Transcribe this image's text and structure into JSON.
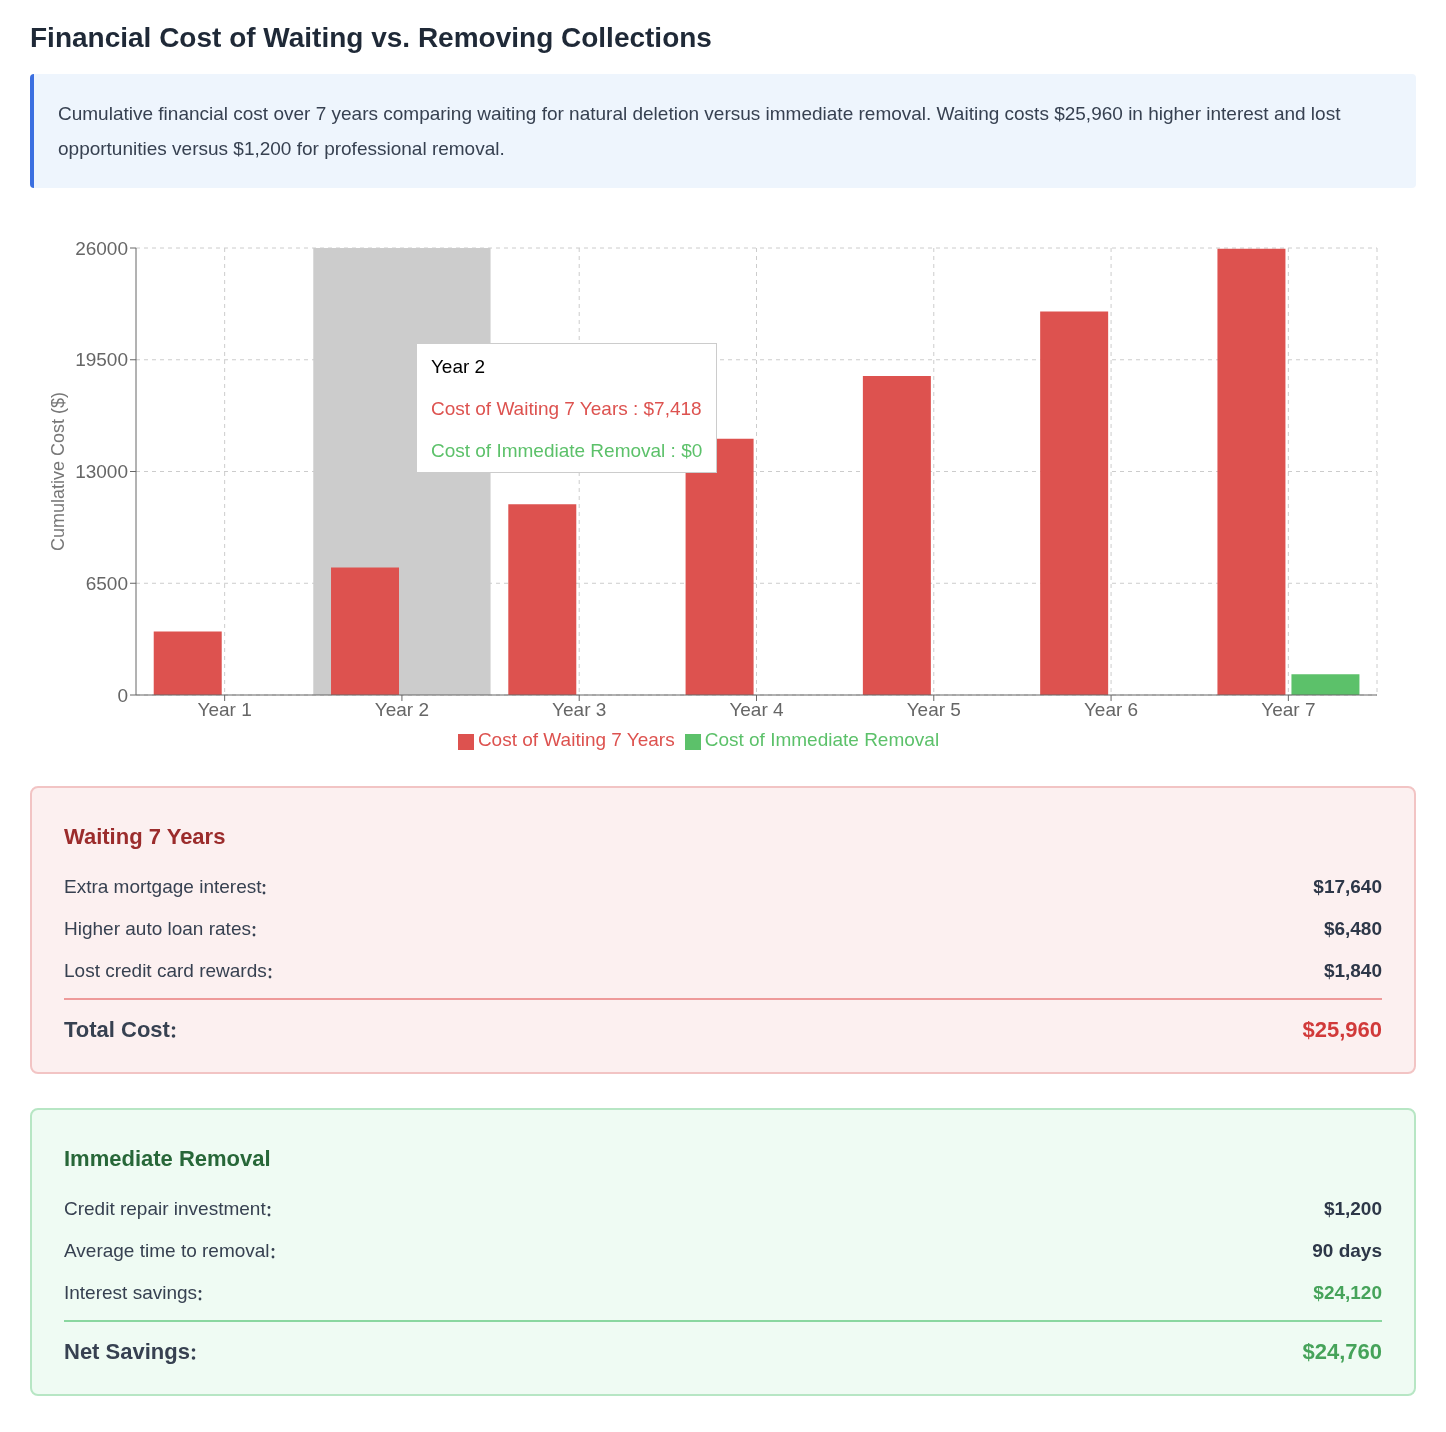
{
  "chart_data": [
    {
      "type": "bar",
      "title": "Financial Cost of Waiting vs. Removing Collections",
      "subtitle": "Cumulative financial cost over 7 years comparing waiting for natural deletion versus immediate removal. Waiting costs $25,960 in higher interest and lost opportunities versus $1,200 for professional removal.",
      "ylabel": "Cumulative Cost ($)",
      "categories": [
        "Year 1",
        "Year 2",
        "Year 3",
        "Year 4",
        "Year 5",
        "Year 6",
        "Year 7"
      ],
      "series": [
        {
          "name": "Cost of Waiting 7 Years",
          "color": "#dd524f",
          "values": [
            3700,
            7418,
            11100,
            14900,
            18550,
            22300,
            25960
          ]
        },
        {
          "name": "Cost of Immediate Removal",
          "color": "#5cc16a",
          "values": [
            0,
            0,
            0,
            0,
            0,
            0,
            1200
          ]
        }
      ],
      "ylim": [
        0,
        26000
      ],
      "yticks": [
        0,
        6500,
        13000,
        19500,
        26000
      ],
      "grid": true,
      "legend": "bottom",
      "bands": [
        {
          "axis": "x",
          "from": "Year 2",
          "to": "Year 2",
          "color": "#cccccc"
        }
      ],
      "annotations": [
        "Cost of Waiting 7 Years : $7,418",
        "Cost of Immediate Removal : $0"
      ]
    },
    {
      "type": "other",
      "title": "Waiting 7 Years",
      "color": "#9b2c2c",
      "categories": [
        "Extra mortgage interest",
        "Higher auto loan rates",
        "Lost credit card rewards",
        "Total Cost"
      ],
      "value_labels": [
        "$17,640",
        "$6,480",
        "$1,840",
        "$25,960"
      ]
    },
    {
      "type": "other",
      "title": "Immediate Removal",
      "color": "#276738",
      "categories": [
        "Credit repair investment",
        "Average time to removal",
        "Interest savings",
        "Net Savings"
      ],
      "value_labels": [
        "$1,200",
        "90 days",
        "$24,120",
        "$24,760"
      ]
    }
  ]
}
